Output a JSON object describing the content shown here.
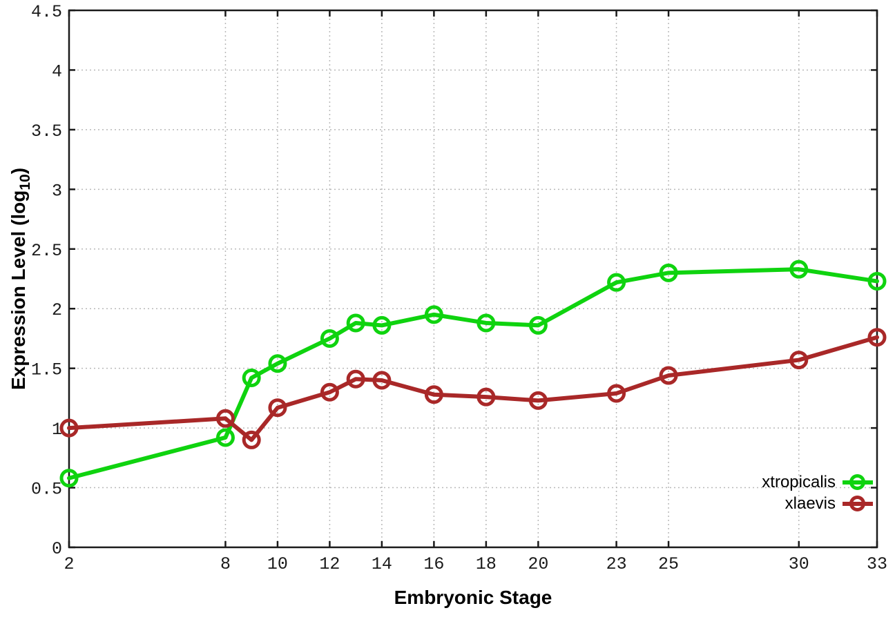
{
  "figure": {
    "ylabel_prefix": "Expression Level (log",
    "ylabel_subscript": "10",
    "ylabel_suffix": ")"
  },
  "chart_data": {
    "type": "line",
    "title": "",
    "xlabel": "Embryonic Stage",
    "ylabel": "Expression Level (log10)",
    "xlim": [
      2,
      33
    ],
    "ylim": [
      0,
      4.5
    ],
    "grid": true,
    "legend_position": "bottom-right",
    "marker": "open-circle",
    "x": [
      2,
      8,
      9,
      10,
      12,
      13,
      14,
      16,
      18,
      20,
      23,
      25,
      30,
      33
    ],
    "series": [
      {
        "name": "xtropicalis",
        "color": "#0fd30f",
        "values": [
          0.58,
          0.92,
          1.42,
          1.54,
          1.75,
          1.88,
          1.86,
          1.95,
          1.88,
          1.86,
          2.22,
          2.3,
          2.33,
          2.23
        ]
      },
      {
        "name": "xlaevis",
        "color": "#a92828",
        "values": [
          1.0,
          1.08,
          0.9,
          1.17,
          1.3,
          1.41,
          1.4,
          1.28,
          1.26,
          1.23,
          1.29,
          1.44,
          1.57,
          1.76
        ]
      }
    ],
    "x_tick_values": [
      2,
      8,
      10,
      12,
      14,
      16,
      18,
      20,
      23,
      25,
      30,
      33
    ],
    "x_tick_labels": [
      "2",
      "8",
      "10",
      "12",
      "14",
      "16",
      "18",
      "20",
      "23",
      "25",
      "30",
      "33"
    ],
    "y_tick_values": [
      0,
      0.5,
      1,
      1.5,
      2,
      2.5,
      3,
      3.5,
      4,
      4.5
    ],
    "y_tick_labels": [
      "0",
      "0.5",
      "1",
      "1.5",
      "2",
      "2.5",
      "3",
      "3.5",
      "4",
      "4.5"
    ]
  },
  "style": {
    "background": "#ffffff",
    "grid_color": "#b8b8b8",
    "axis_color": "#1a1a1a",
    "tick_text_color": "#1a1a1a"
  }
}
